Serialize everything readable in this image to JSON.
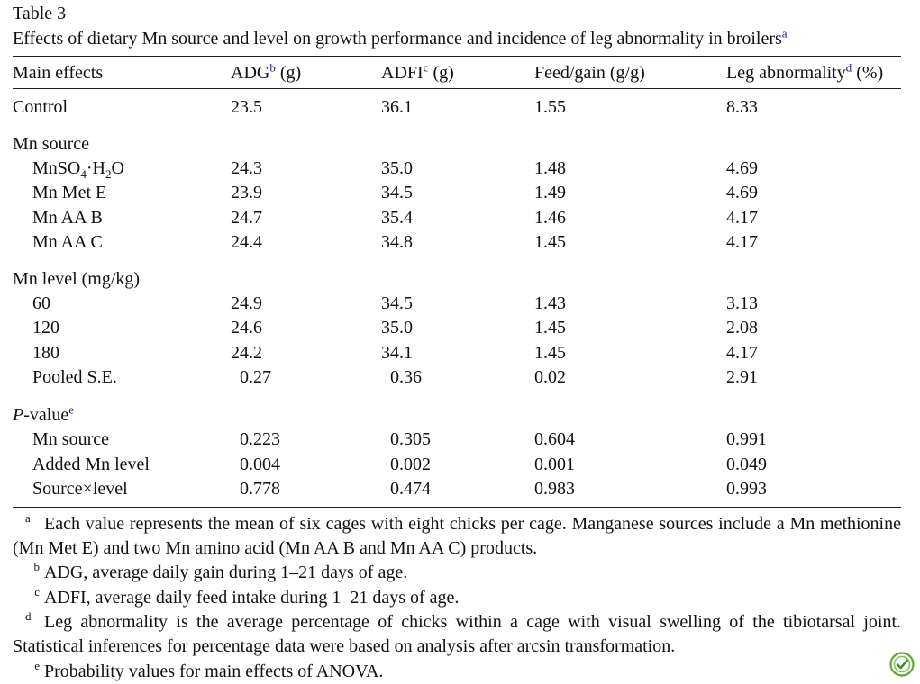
{
  "table": {
    "label": "Table 3",
    "title": "Effects of dietary Mn source and level on growth performance and incidence of leg abnormality in broilers",
    "title_sup": "a",
    "headers": {
      "main": "Main effects",
      "adg": "ADG",
      "adg_sup": "b",
      "adg_unit": " (g)",
      "adfi": "ADFI",
      "adfi_sup": "c",
      "adfi_unit": " (g)",
      "fg": "Feed/gain (g/g)",
      "leg": "Leg abnormality",
      "leg_sup": "d",
      "leg_unit": " (%)"
    },
    "control": {
      "label": "Control",
      "adg": "23.5",
      "adfi": "36.1",
      "fg": "1.55",
      "leg": "8.33"
    },
    "mn_source": {
      "heading": "Mn source",
      "rows": [
        {
          "label": "MnSO4·H2O",
          "label_a": "MnSO",
          "label_sub1": "4",
          "label_b": "·H",
          "label_sub2": "2",
          "label_c": "O",
          "adg": "24.3",
          "adfi": "35.0",
          "fg": "1.48",
          "leg": "4.69"
        },
        {
          "label": "Mn Met E",
          "adg": "23.9",
          "adfi": "34.5",
          "fg": "1.49",
          "leg": "4.69"
        },
        {
          "label": "Mn AA B",
          "adg": "24.7",
          "adfi": "35.4",
          "fg": "1.46",
          "leg": "4.17"
        },
        {
          "label": "Mn AA C",
          "adg": "24.4",
          "adfi": "34.8",
          "fg": "1.45",
          "leg": "4.17"
        }
      ]
    },
    "mn_level": {
      "heading": "Mn level (mg/kg)",
      "rows": [
        {
          "label": "60",
          "adg": "24.9",
          "adfi": "34.5",
          "fg": "1.43",
          "leg": "3.13"
        },
        {
          "label": "120",
          "adg": "24.6",
          "adfi": "35.0",
          "fg": "1.45",
          "leg": "2.08"
        },
        {
          "label": "180",
          "adg": "24.2",
          "adfi": "34.1",
          "fg": "1.45",
          "leg": "4.17"
        },
        {
          "label": "Pooled S.E.",
          "adg": "0.27",
          "adfi": "0.36",
          "fg": "0.02",
          "leg": "2.91"
        }
      ]
    },
    "p_value": {
      "heading_italic": "P",
      "heading_rest": "-value",
      "heading_sup": "e",
      "rows": [
        {
          "label": "Mn source",
          "adg": "0.223",
          "adfi": "0.305",
          "fg": "0.604",
          "leg": "0.991"
        },
        {
          "label": "Added Mn level",
          "adg": "0.004",
          "adfi": "0.002",
          "fg": "0.001",
          "leg": "0.049"
        },
        {
          "label": "Source×level",
          "label_a": "Source",
          "label_x": "×",
          "label_b": "level",
          "adg": "0.778",
          "adfi": "0.474",
          "fg": "0.983",
          "leg": "0.993"
        }
      ]
    },
    "footnotes": [
      {
        "sup": "a",
        "text": "Each value represents the mean of six cages with eight chicks per cage. Manganese sources include a Mn methionine (Mn Met E) and two Mn amino acid (Mn AA B and Mn AA C) products."
      },
      {
        "sup": "b",
        "text": "ADG, average daily gain during 1–21 days of age."
      },
      {
        "sup": "c",
        "text": "ADFI, average daily feed intake during 1–21 days of age."
      },
      {
        "sup": "d",
        "text": "Leg abnormality is the average percentage of chicks within a cage with visual swelling of the tibiotarsal joint. Statistical inferences for percentage data were based on analysis after arcsin transformation."
      },
      {
        "sup": "e",
        "text": "Probability values for main effects of ANOVA."
      }
    ]
  },
  "brand_icon": "crossmark-icon",
  "colors": {
    "footnote_link": "#1a1a8c",
    "icon_green": "#5aa832"
  }
}
